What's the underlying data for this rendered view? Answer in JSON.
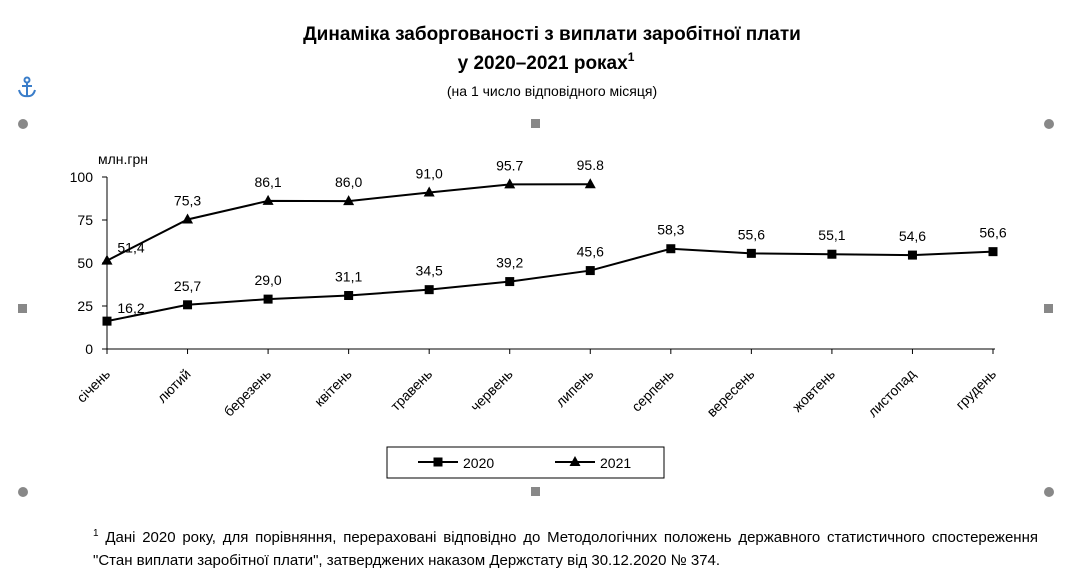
{
  "chart_data": {
    "type": "line",
    "title_lines": [
      "Динаміка заборгованості з виплати заробітної плати",
      "у 2020–2021 роках"
    ],
    "title_sup": "1",
    "subtitle": "(на 1 число відповідного місяця)",
    "y_label": "млн.грн",
    "categories": [
      "січень",
      "лютий",
      "березень",
      "квітень",
      "травень",
      "червень",
      "липень",
      "серпень",
      "вересень",
      "жовтень",
      "листопад",
      "грудень"
    ],
    "series": [
      {
        "name": "2020",
        "color": "#000000",
        "marker": "square",
        "values": [
          16.2,
          25.7,
          29.0,
          31.1,
          34.5,
          39.2,
          45.6,
          58.3,
          55.6,
          55.1,
          54.6,
          56.6
        ],
        "value_labels": [
          "16,2",
          "25,7",
          "29,0",
          "31,1",
          "34,5",
          "39,2",
          "45,6",
          "58,3",
          "55,6",
          "55,1",
          "54,6",
          "56,6"
        ]
      },
      {
        "name": "2021",
        "color": "#000000",
        "marker": "triangle",
        "values": [
          51.4,
          75.3,
          86.1,
          86.0,
          91.0,
          95.7,
          95.8,
          null,
          null,
          null,
          null,
          null
        ],
        "value_labels": [
          "51,4",
          "75,3",
          "86,1",
          "86,0",
          "91,0",
          "95.7",
          "95.8",
          null,
          null,
          null,
          null,
          null
        ]
      }
    ],
    "ylim": [
      0,
      100
    ],
    "yticks": [
      0,
      25,
      50,
      75,
      100
    ],
    "grid": false,
    "legend": "bottom"
  },
  "footnote": {
    "marker": "1",
    "text": "Дані 2020 року, для порівняння, перераховані відповідно до Методологічних положень  державного статистичного спостереження \"Стан виплати заробітної плати\", затверджених наказом Держстату від 30.12.2020 № 374."
  }
}
